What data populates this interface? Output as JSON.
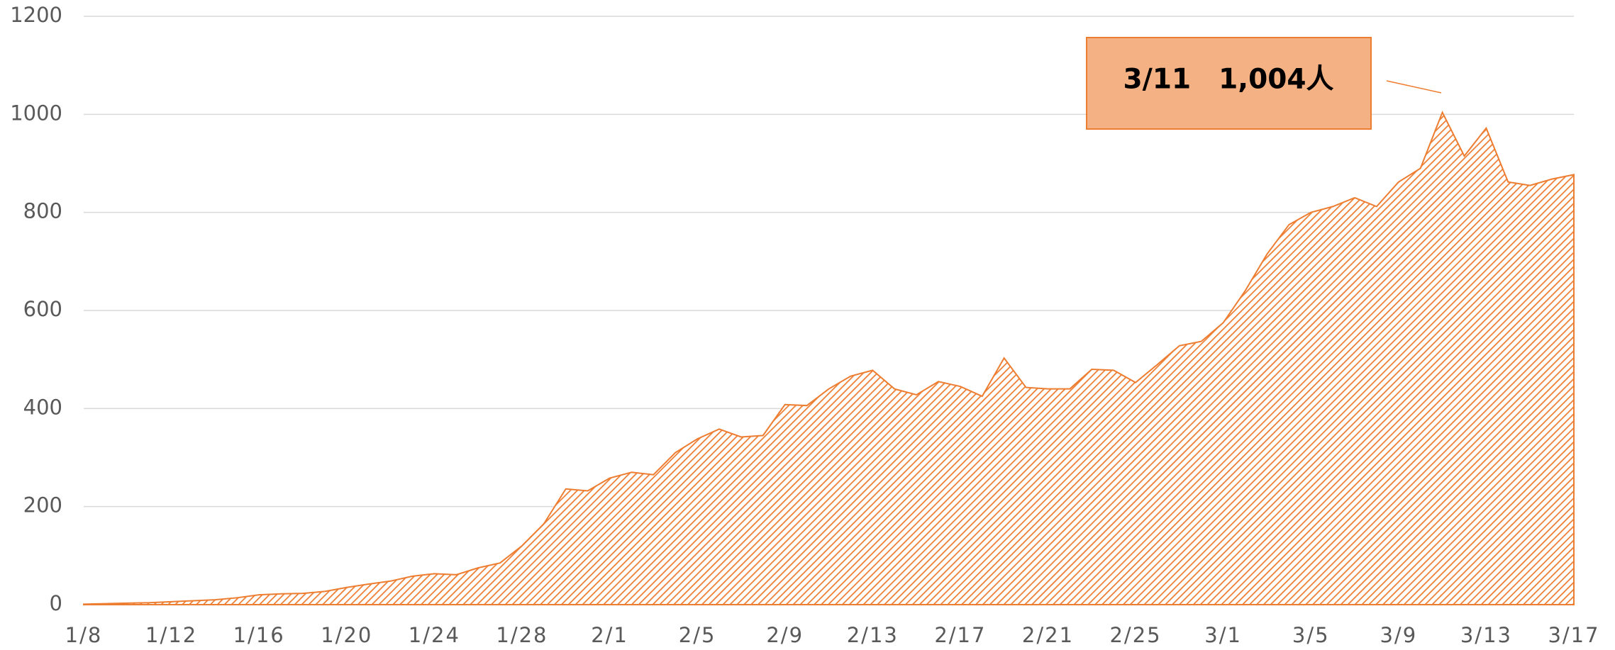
{
  "chart_data": {
    "type": "area",
    "categories": [
      "1/8",
      null,
      null,
      null,
      "1/12",
      null,
      null,
      null,
      "1/16",
      null,
      null,
      null,
      "1/20",
      null,
      null,
      null,
      "1/24",
      null,
      null,
      null,
      "1/28",
      null,
      null,
      null,
      "2/1",
      null,
      null,
      null,
      "2/5",
      null,
      null,
      null,
      "2/9",
      null,
      null,
      null,
      "2/13",
      null,
      null,
      null,
      "2/17",
      null,
      null,
      null,
      "2/21",
      null,
      null,
      null,
      "2/25",
      null,
      null,
      null,
      "3/1",
      null,
      null,
      null,
      "3/5",
      null,
      null,
      null,
      "3/9",
      null,
      null,
      null,
      "3/13",
      null,
      null,
      null,
      "3/17"
    ],
    "values": [
      1,
      2,
      3,
      4,
      6,
      8,
      10,
      14,
      20,
      22,
      23,
      27,
      35,
      42,
      48,
      58,
      63,
      61,
      75,
      85,
      120,
      165,
      236,
      232,
      258,
      270,
      265,
      310,
      338,
      358,
      342,
      345,
      408,
      406,
      440,
      466,
      478,
      440,
      428,
      455,
      445,
      425,
      503,
      443,
      440,
      440,
      480,
      478,
      453,
      490,
      528,
      537,
      575,
      640,
      715,
      775,
      800,
      812,
      830,
      812,
      862,
      890,
      1004,
      915,
      972,
      862,
      855,
      868,
      877
    ],
    "color": "#ed7d31",
    "ylim": [
      0,
      1200
    ],
    "yticks": [
      0,
      200,
      400,
      600,
      800,
      1000,
      1200
    ],
    "grid": true,
    "annotation": "3/11　1,004人"
  }
}
